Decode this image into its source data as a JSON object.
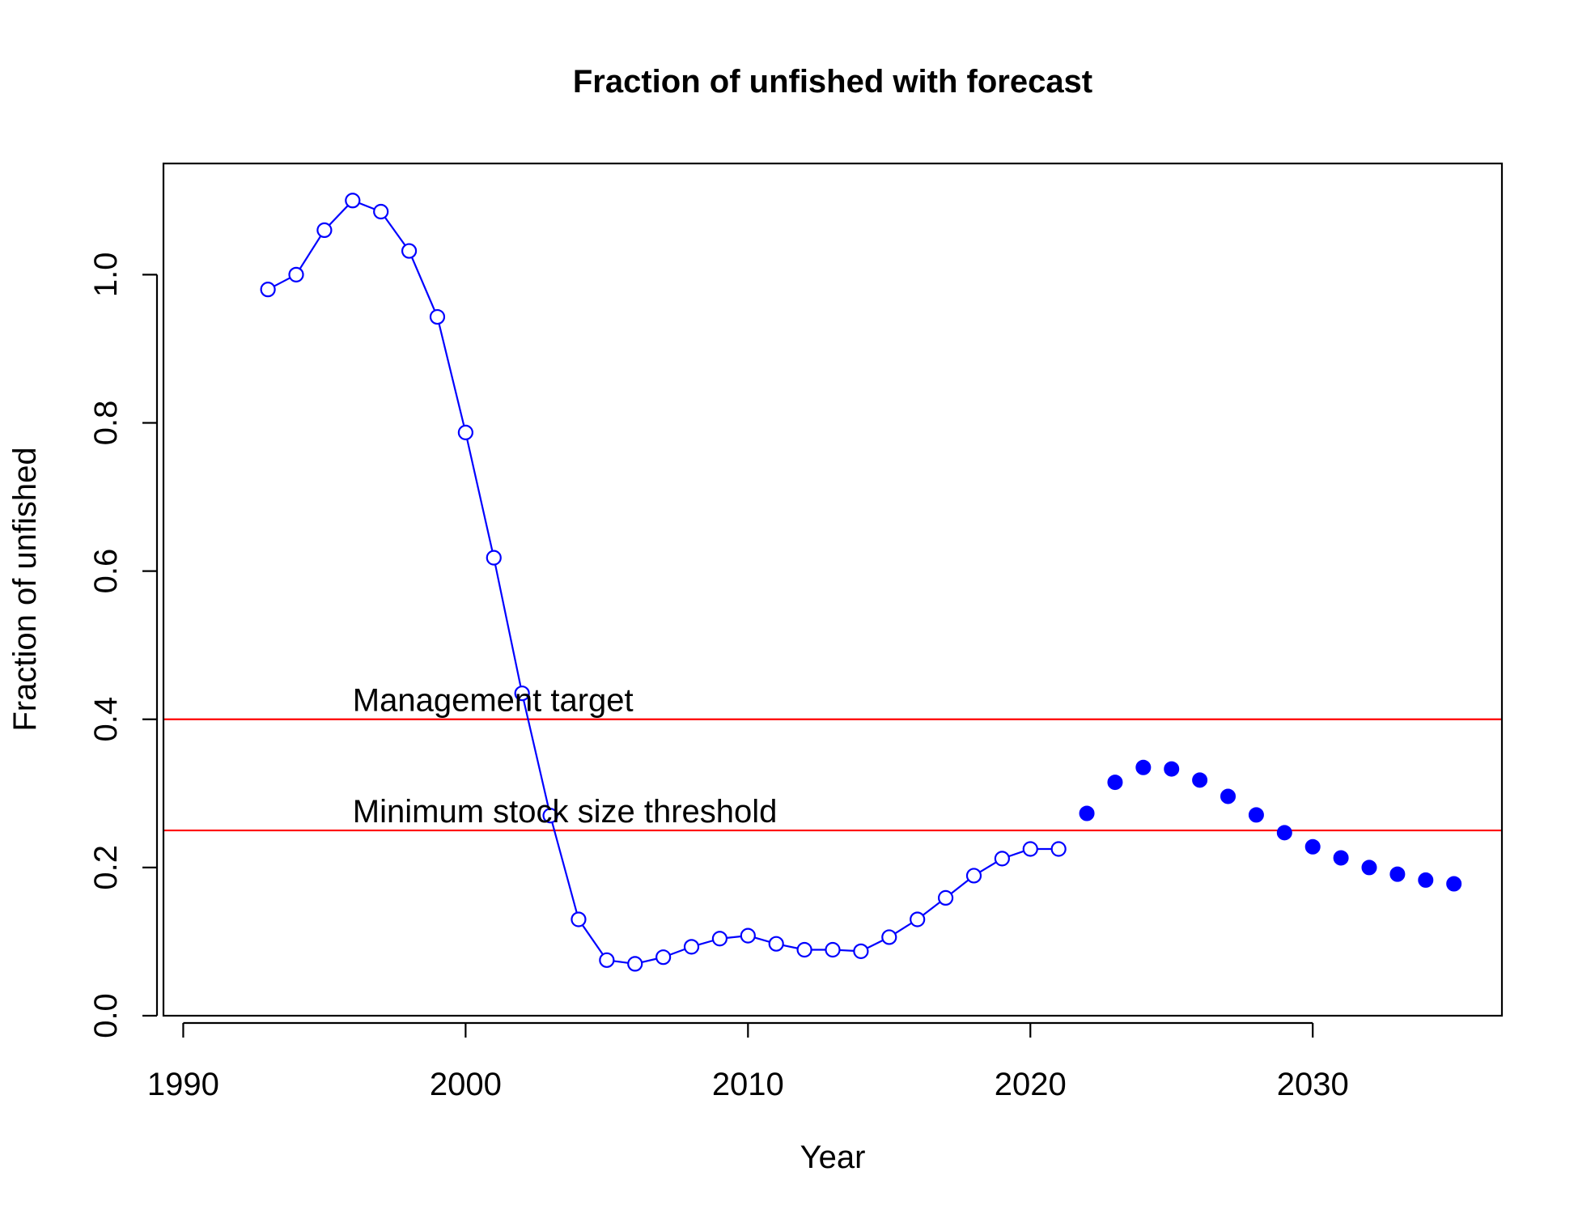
{
  "chart_data": {
    "type": "line",
    "title": "Fraction of unfished with forecast",
    "xlabel": "Year",
    "ylabel": "Fraction of unfished",
    "xlim": [
      1989.3,
      2036.7
    ],
    "ylim": [
      0.0,
      1.15
    ],
    "x_ticks": [
      {
        "value": 1990,
        "label": "1990"
      },
      {
        "value": 2000,
        "label": "2000"
      },
      {
        "value": 2010,
        "label": "2010"
      },
      {
        "value": 2020,
        "label": "2020"
      },
      {
        "value": 2030,
        "label": "2030"
      }
    ],
    "y_ticks": [
      {
        "value": 0.0,
        "label": "0.0"
      },
      {
        "value": 0.2,
        "label": "0.2"
      },
      {
        "value": 0.4,
        "label": "0.4"
      },
      {
        "value": 0.6,
        "label": "0.6"
      },
      {
        "value": 0.8,
        "label": "0.8"
      },
      {
        "value": 1.0,
        "label": "1.0"
      }
    ],
    "grid": false,
    "reference_lines": [
      {
        "y": 0.4,
        "label": "Management target",
        "label_x": 1996,
        "color": "#ff0000"
      },
      {
        "y": 0.25,
        "label": "Minimum stock size threshold",
        "label_x": 1996,
        "color": "#ff0000"
      }
    ],
    "series": [
      {
        "style": "line-open-circles",
        "color": "#0000ff",
        "points": [
          {
            "x": 1993,
            "y": 0.98
          },
          {
            "x": 1994,
            "y": 1.0
          },
          {
            "x": 1995,
            "y": 1.06
          },
          {
            "x": 1996,
            "y": 1.1
          },
          {
            "x": 1997,
            "y": 1.085
          },
          {
            "x": 1998,
            "y": 1.032
          },
          {
            "x": 1999,
            "y": 0.943
          },
          {
            "x": 2000,
            "y": 0.787
          },
          {
            "x": 2001,
            "y": 0.618
          },
          {
            "x": 2002,
            "y": 0.435
          },
          {
            "x": 2003,
            "y": 0.27
          },
          {
            "x": 2004,
            "y": 0.13
          },
          {
            "x": 2005,
            "y": 0.075
          },
          {
            "x": 2006,
            "y": 0.07
          },
          {
            "x": 2007,
            "y": 0.079
          },
          {
            "x": 2008,
            "y": 0.093
          },
          {
            "x": 2009,
            "y": 0.104
          },
          {
            "x": 2010,
            "y": 0.108
          },
          {
            "x": 2011,
            "y": 0.097
          },
          {
            "x": 2012,
            "y": 0.089
          },
          {
            "x": 2013,
            "y": 0.089
          },
          {
            "x": 2014,
            "y": 0.087
          },
          {
            "x": 2015,
            "y": 0.106
          },
          {
            "x": 2016,
            "y": 0.13
          },
          {
            "x": 2017,
            "y": 0.159
          },
          {
            "x": 2018,
            "y": 0.189
          },
          {
            "x": 2019,
            "y": 0.212
          },
          {
            "x": 2020,
            "y": 0.225
          },
          {
            "x": 2021,
            "y": 0.225
          }
        ]
      },
      {
        "style": "filled-points",
        "color": "#0000ff",
        "points": [
          {
            "x": 2022,
            "y": 0.273
          },
          {
            "x": 2023,
            "y": 0.315
          },
          {
            "x": 2024,
            "y": 0.335
          },
          {
            "x": 2025,
            "y": 0.333
          },
          {
            "x": 2026,
            "y": 0.318
          },
          {
            "x": 2027,
            "y": 0.296
          },
          {
            "x": 2028,
            "y": 0.271
          },
          {
            "x": 2029,
            "y": 0.247
          },
          {
            "x": 2030,
            "y": 0.228
          },
          {
            "x": 2031,
            "y": 0.213
          },
          {
            "x": 2032,
            "y": 0.2
          },
          {
            "x": 2033,
            "y": 0.191
          },
          {
            "x": 2034,
            "y": 0.183
          },
          {
            "x": 2035,
            "y": 0.178
          }
        ]
      }
    ]
  }
}
